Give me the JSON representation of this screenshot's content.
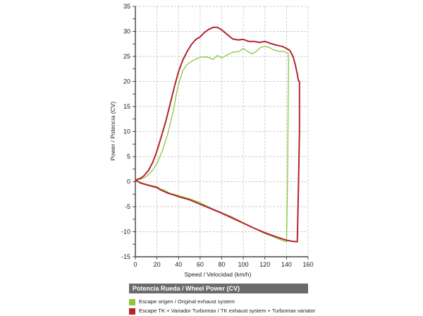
{
  "chart_data": {
    "type": "line",
    "title": "",
    "xlabel": "Speed / Velocidad (km/h)",
    "ylabel": "Power / Potencia (CV)",
    "xlim": [
      0,
      160
    ],
    "ylim": [
      -15,
      35
    ],
    "xticks": [
      0,
      20,
      40,
      60,
      80,
      100,
      120,
      140,
      160
    ],
    "yticks": [
      -15,
      -10,
      -5,
      0,
      5,
      10,
      15,
      20,
      25,
      30,
      35
    ],
    "grid": true,
    "legend_title": "Potencia Rueda / Wheel Power (CV)",
    "legend_position": "bottom",
    "series": [
      {
        "name": "Escape origen / Original exhaust system",
        "color": "#8cc63f",
        "points": [
          [
            0,
            0.3
          ],
          [
            5,
            -0.2
          ],
          [
            10,
            -0.5
          ],
          [
            15,
            -0.8
          ],
          [
            20,
            -1.0
          ],
          [
            22,
            -1.3
          ],
          [
            25,
            -1.6
          ],
          [
            28,
            -1.8
          ],
          [
            30,
            -2.1
          ],
          [
            33,
            -2.4
          ],
          [
            40,
            -2.8
          ],
          [
            50,
            -3.4
          ],
          [
            60,
            -4.2
          ],
          [
            70,
            -5.3
          ],
          [
            80,
            -6.2
          ],
          [
            90,
            -7.1
          ],
          [
            100,
            -8.2
          ],
          [
            110,
            -9.3
          ],
          [
            120,
            -10.4
          ],
          [
            130,
            -11.2
          ],
          [
            138,
            -11.9
          ],
          [
            140,
            -12.0
          ],
          [
            141,
            0
          ],
          [
            141.5,
            15
          ],
          [
            142,
            24
          ],
          [
            141.5,
            25.6
          ],
          [
            138,
            26.0
          ],
          [
            133,
            26.0
          ],
          [
            128,
            26.3
          ],
          [
            124,
            26.8
          ],
          [
            120,
            27.0
          ],
          [
            116,
            26.8
          ],
          [
            112,
            26.0
          ],
          [
            108,
            25.5
          ],
          [
            104,
            26.0
          ],
          [
            100,
            26.6
          ],
          [
            96,
            26.0
          ],
          [
            90,
            25.8
          ],
          [
            85,
            25.3
          ],
          [
            80,
            24.7
          ],
          [
            76,
            25.2
          ],
          [
            72,
            24.4
          ],
          [
            68,
            24.8
          ],
          [
            64,
            24.9
          ],
          [
            60,
            24.8
          ],
          [
            56,
            24.5
          ],
          [
            52,
            24.0
          ],
          [
            48,
            23.4
          ],
          [
            44,
            22.2
          ],
          [
            40,
            19.5
          ],
          [
            38,
            17.5
          ],
          [
            35,
            14.0
          ],
          [
            30,
            9.5
          ],
          [
            25,
            6.2
          ],
          [
            20,
            3.6
          ],
          [
            15,
            2.0
          ],
          [
            10,
            1.0
          ],
          [
            5,
            0.5
          ],
          [
            0,
            0.3
          ]
        ]
      },
      {
        "name": "Escape TK + Variador Turbomax  / TK exhaust  system + Turbomax variator",
        "color": "#b5232e",
        "points": [
          [
            0,
            0.3
          ],
          [
            5,
            -0.3
          ],
          [
            10,
            -0.6
          ],
          [
            15,
            -0.9
          ],
          [
            20,
            -1.2
          ],
          [
            22,
            -1.5
          ],
          [
            25,
            -1.8
          ],
          [
            28,
            -2.1
          ],
          [
            30,
            -2.3
          ],
          [
            35,
            -2.6
          ],
          [
            40,
            -3.0
          ],
          [
            50,
            -3.6
          ],
          [
            60,
            -4.5
          ],
          [
            70,
            -5.4
          ],
          [
            80,
            -6.3
          ],
          [
            90,
            -7.3
          ],
          [
            100,
            -8.3
          ],
          [
            110,
            -9.3
          ],
          [
            120,
            -10.2
          ],
          [
            130,
            -11.0
          ],
          [
            140,
            -11.7
          ],
          [
            145,
            -11.9
          ],
          [
            150,
            -12.0
          ],
          [
            151,
            -2
          ],
          [
            152,
            10
          ],
          [
            152,
            20
          ],
          [
            151,
            20.2
          ],
          [
            150,
            21.5
          ],
          [
            148,
            23.5
          ],
          [
            146,
            25.0
          ],
          [
            143,
            26.2
          ],
          [
            140,
            26.6
          ],
          [
            136,
            27.0
          ],
          [
            130,
            27.3
          ],
          [
            125,
            27.6
          ],
          [
            120,
            28.0
          ],
          [
            115,
            27.8
          ],
          [
            110,
            28.0
          ],
          [
            105,
            28.0
          ],
          [
            100,
            28.4
          ],
          [
            95,
            28.3
          ],
          [
            90,
            28.5
          ],
          [
            85,
            29.4
          ],
          [
            80,
            30.3
          ],
          [
            76,
            30.8
          ],
          [
            72,
            30.8
          ],
          [
            68,
            30.4
          ],
          [
            64,
            29.8
          ],
          [
            60,
            28.9
          ],
          [
            56,
            28.4
          ],
          [
            52,
            27.4
          ],
          [
            48,
            26.0
          ],
          [
            44,
            24.3
          ],
          [
            40,
            22.0
          ],
          [
            36,
            18.8
          ],
          [
            32,
            15.3
          ],
          [
            28,
            11.9
          ],
          [
            24,
            9.0
          ],
          [
            20,
            6.1
          ],
          [
            16,
            3.8
          ],
          [
            12,
            2.2
          ],
          [
            8,
            1.2
          ],
          [
            5,
            0.7
          ],
          [
            0,
            0.3
          ]
        ]
      }
    ]
  }
}
